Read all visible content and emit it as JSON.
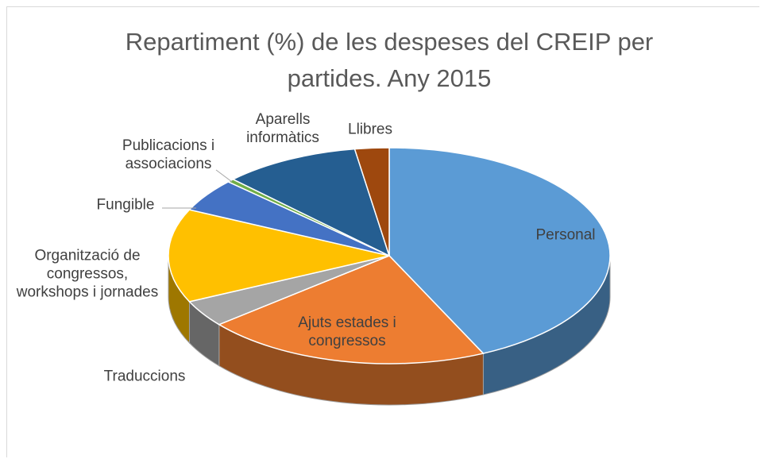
{
  "chart_data": {
    "type": "pie",
    "title": "Repartiment (%) de les despeses del CREIP per partides. Any 2015",
    "categories": [
      "Personal",
      "Ajuts estades i congressos",
      "Traduccions",
      "Organització de congressos, workshops i jornades",
      "Fungible",
      "Publicacions i associacions",
      "Aparells informàtics",
      "Llibres"
    ],
    "values": [
      43,
      21,
      4,
      14,
      5,
      0.5,
      10,
      2.5
    ],
    "colors": [
      "#5b9bd5",
      "#ed7d31",
      "#a5a5a5",
      "#ffc000",
      "#4472c4",
      "#70ad47",
      "#255e91",
      "#9e480e"
    ]
  }
}
